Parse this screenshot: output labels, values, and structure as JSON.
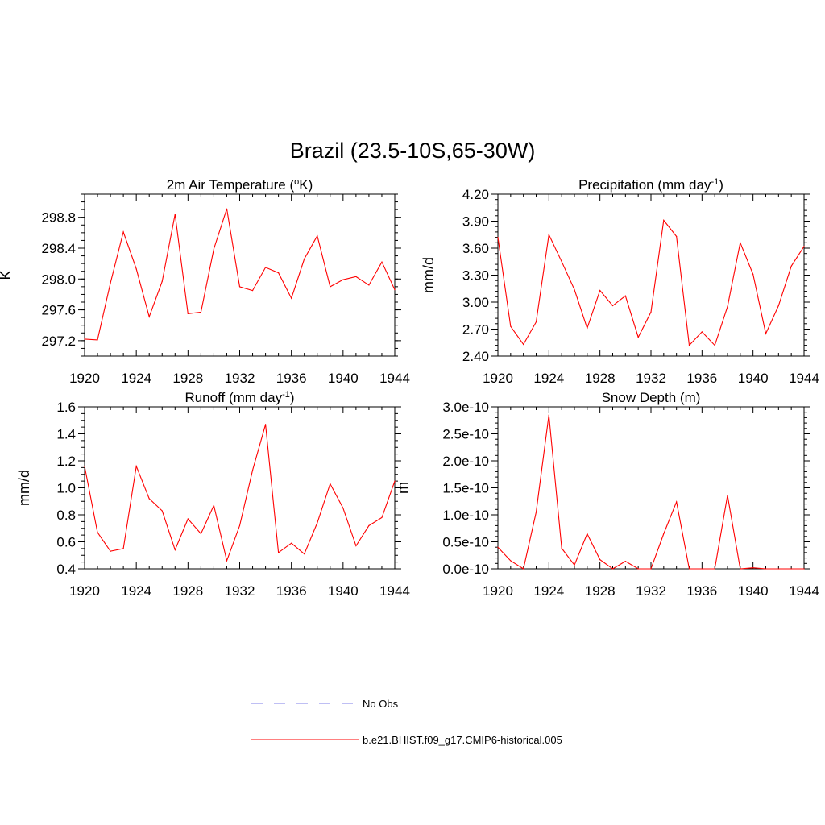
{
  "figure": {
    "title": "Brazil (23.5-10S,65-30W)"
  },
  "legend": {
    "entries": [
      {
        "label": "No Obs",
        "style": "dashed",
        "color": "#9999ee"
      },
      {
        "label": "b.e21.BHIST.f09_g17.CMIP6-historical.005",
        "style": "solid",
        "color": "#ff0000"
      }
    ]
  },
  "chart_data": [
    {
      "type": "line",
      "title_main": "2m Air Temperature (",
      "title_sup": "o",
      "title_tail": "K)",
      "ylabel": "K",
      "xlim": [
        1920,
        1944
      ],
      "ylim": [
        297.0,
        299.1
      ],
      "xticks": [
        "1920",
        "1924",
        "1928",
        "1932",
        "1936",
        "1940",
        "1944"
      ],
      "xtick_values": [
        1920,
        1924,
        1928,
        1932,
        1936,
        1940,
        1944
      ],
      "yticks": [
        "297.2",
        "297.6",
        "298.0",
        "298.4",
        "298.8"
      ],
      "ytick_values": [
        297.2,
        297.6,
        298.0,
        298.4,
        298.8
      ],
      "y_minor_step": 0.1,
      "series": [
        {
          "color": "#ff0000",
          "x": [
            1920,
            1921,
            1922,
            1923,
            1924,
            1925,
            1926,
            1927,
            1928,
            1929,
            1930,
            1931,
            1932,
            1933,
            1934,
            1935,
            1936,
            1937,
            1938,
            1939,
            1940,
            1941,
            1942,
            1943,
            1944
          ],
          "values": [
            297.22,
            297.21,
            297.95,
            298.61,
            298.13,
            297.51,
            297.97,
            298.84,
            297.55,
            297.57,
            298.39,
            298.91,
            297.9,
            297.85,
            298.15,
            298.08,
            297.75,
            298.26,
            298.56,
            297.9,
            297.99,
            298.03,
            297.92,
            298.22,
            297.86
          ]
        }
      ]
    },
    {
      "type": "line",
      "title_main": "Precipitation (mm day",
      "title_sup": "-1",
      "title_tail": ")",
      "ylabel": "mm/d",
      "xlim": [
        1920,
        1944
      ],
      "ylim": [
        2.4,
        4.2
      ],
      "xticks": [
        "1920",
        "1924",
        "1928",
        "1932",
        "1936",
        "1940",
        "1944"
      ],
      "xtick_values": [
        1920,
        1924,
        1928,
        1932,
        1936,
        1940,
        1944
      ],
      "yticks": [
        "2.40",
        "2.70",
        "3.00",
        "3.30",
        "3.60",
        "3.90",
        "4.20"
      ],
      "ytick_values": [
        2.4,
        2.7,
        3.0,
        3.3,
        3.6,
        3.9,
        4.2
      ],
      "y_minor_step": 0.06,
      "series": [
        {
          "color": "#ff0000",
          "x": [
            1920,
            1921,
            1922,
            1923,
            1924,
            1925,
            1926,
            1927,
            1928,
            1929,
            1930,
            1931,
            1932,
            1933,
            1934,
            1935,
            1936,
            1937,
            1938,
            1939,
            1940,
            1941,
            1942,
            1943,
            1944
          ],
          "values": [
            3.72,
            2.73,
            2.53,
            2.78,
            3.75,
            3.45,
            3.14,
            2.71,
            3.13,
            2.96,
            3.07,
            2.61,
            2.89,
            3.91,
            3.73,
            2.52,
            2.67,
            2.52,
            2.95,
            3.66,
            3.31,
            2.65,
            2.96,
            3.4,
            3.62
          ]
        }
      ]
    },
    {
      "type": "line",
      "title_main": "Runoff (mm day",
      "title_sup": "-1",
      "title_tail": ")",
      "ylabel": "mm/d",
      "xlim": [
        1920,
        1944
      ],
      "ylim": [
        0.4,
        1.6
      ],
      "xticks": [
        "1920",
        "1924",
        "1928",
        "1932",
        "1936",
        "1940",
        "1944"
      ],
      "xtick_values": [
        1920,
        1924,
        1928,
        1932,
        1936,
        1940,
        1944
      ],
      "yticks": [
        "0.4",
        "0.6",
        "0.8",
        "1.0",
        "1.2",
        "1.4",
        "1.6"
      ],
      "ytick_values": [
        0.4,
        0.6,
        0.8,
        1.0,
        1.2,
        1.4,
        1.6
      ],
      "y_minor_step": 0.05,
      "series": [
        {
          "color": "#ff0000",
          "x": [
            1920,
            1921,
            1922,
            1923,
            1924,
            1925,
            1926,
            1927,
            1928,
            1929,
            1930,
            1931,
            1932,
            1933,
            1934,
            1935,
            1936,
            1937,
            1938,
            1939,
            1940,
            1941,
            1942,
            1943,
            1944
          ],
          "values": [
            1.16,
            0.67,
            0.53,
            0.55,
            1.16,
            0.92,
            0.83,
            0.54,
            0.77,
            0.66,
            0.87,
            0.46,
            0.72,
            1.13,
            1.47,
            0.52,
            0.59,
            0.51,
            0.74,
            1.03,
            0.85,
            0.57,
            0.72,
            0.78,
            1.05
          ]
        }
      ]
    },
    {
      "type": "line",
      "title_main": "Snow Depth (m)",
      "title_sup": "",
      "title_tail": "",
      "ylabel": "m",
      "xlim": [
        1920,
        1944
      ],
      "ylim": [
        0,
        3e-10
      ],
      "xticks": [
        "1920",
        "1924",
        "1928",
        "1932",
        "1936",
        "1940",
        "1944"
      ],
      "xtick_values": [
        1920,
        1924,
        1928,
        1932,
        1936,
        1940,
        1944
      ],
      "yticks": [
        "0.0e-10",
        "0.5e-10",
        "1.0e-10",
        "1.5e-10",
        "2.0e-10",
        "2.5e-10",
        "3.0e-10"
      ],
      "ytick_values": [
        0,
        5e-11,
        1e-10,
        1.5e-10,
        2e-10,
        2.5e-10,
        3e-10
      ],
      "y_minor_step": 1e-11,
      "series": [
        {
          "color": "#ff0000",
          "x": [
            1920,
            1921,
            1922,
            1923,
            1924,
            1925,
            1926,
            1927,
            1928,
            1929,
            1930,
            1931,
            1932,
            1933,
            1934,
            1935,
            1936,
            1937,
            1938,
            1939,
            1940,
            1941,
            1942,
            1943,
            1944
          ],
          "values": [
            4e-11,
            1.5e-11,
            0.0,
            1.05e-10,
            2.85e-10,
            3.8e-11,
            7e-12,
            6.5e-11,
            1.7e-11,
            0.0,
            1.4e-11,
            0.0,
            0.0,
            6.5e-11,
            1.24e-10,
            0.0,
            0.0,
            0.0,
            1.36e-10,
            0.0,
            2e-12,
            0.0,
            0.0,
            0.0,
            0.0
          ]
        }
      ]
    }
  ]
}
